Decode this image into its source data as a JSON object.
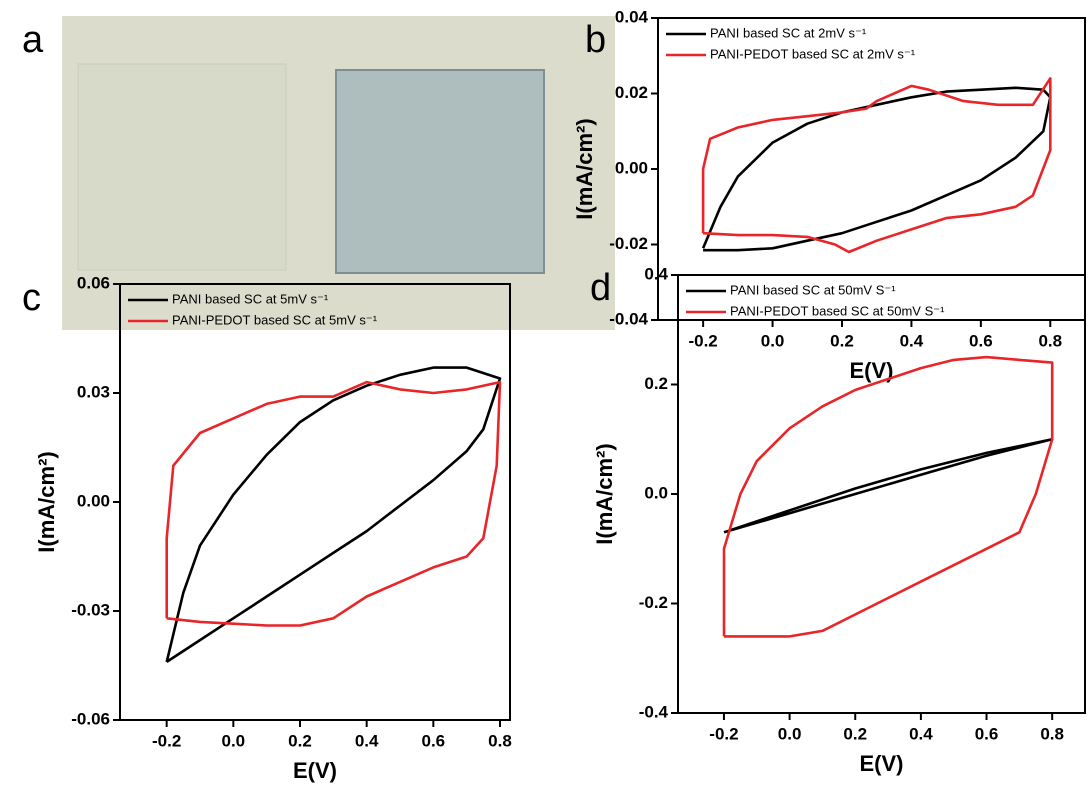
{
  "photo": {
    "panel_label": "a"
  },
  "chart_data": [
    {
      "type": "line",
      "panel_label": "b",
      "xlabel": "E(V)",
      "ylabel": "I(mA/cm²)",
      "xlim": [
        -0.33,
        0.9
      ],
      "xticks": [
        -0.2,
        {
          "value": 0,
          "label": "0.0"
        },
        0.2,
        0.4,
        0.6,
        0.8
      ],
      "ylim": [
        -0.04,
        0.04
      ],
      "yticks": [
        {
          "value": -0.04,
          "label": "-0.04"
        },
        {
          "value": -0.02,
          "label": "-0.02"
        },
        {
          "value": 0,
          "label": "0.00"
        },
        {
          "value": 0.02,
          "label": "0.02"
        },
        {
          "value": 0.04,
          "label": "0.04"
        }
      ],
      "series": [
        {
          "name": "PANI based SC at 2mV s⁻¹",
          "color": "#000000",
          "x": [
            -0.2,
            -0.15,
            -0.1,
            0,
            0.1,
            0.2,
            0.3,
            0.4,
            0.5,
            0.6,
            0.7,
            0.78,
            0.8,
            0.78,
            0.7,
            0.6,
            0.5,
            0.4,
            0.3,
            0.2,
            0.1,
            0,
            -0.1,
            -0.2
          ],
          "values": [
            -0.021,
            -0.01,
            -0.002,
            0.007,
            0.012,
            0.015,
            0.017,
            0.019,
            0.0205,
            0.021,
            0.0215,
            0.021,
            0.019,
            0.01,
            0.003,
            -0.003,
            -0.007,
            -0.011,
            -0.014,
            -0.017,
            -0.019,
            -0.021,
            -0.0215,
            -0.0215
          ]
        },
        {
          "name": "PANI-PEDOT based SC at 2mV s⁻¹",
          "color": "#e8262a",
          "x": [
            -0.2,
            -0.2,
            -0.18,
            -0.1,
            0,
            0.1,
            0.2,
            0.27,
            0.3,
            0.4,
            0.45,
            0.55,
            0.65,
            0.75,
            0.8,
            0.8,
            0.75,
            0.7,
            0.6,
            0.5,
            0.4,
            0.3,
            0.22,
            0.18,
            0.1,
            0,
            -0.1,
            -0.2
          ],
          "values": [
            -0.017,
            0,
            0.008,
            0.011,
            0.013,
            0.014,
            0.015,
            0.016,
            0.018,
            0.022,
            0.021,
            0.018,
            0.017,
            0.017,
            0.024,
            0.005,
            -0.007,
            -0.01,
            -0.012,
            -0.013,
            -0.016,
            -0.019,
            -0.022,
            -0.02,
            -0.018,
            -0.0175,
            -0.0175,
            -0.017
          ]
        }
      ]
    },
    {
      "type": "line",
      "panel_label": "c",
      "xlabel": "E(V)",
      "ylabel": "I(mA/cm²)",
      "xlim": [
        -0.34,
        0.83
      ],
      "xticks": [
        -0.2,
        {
          "value": 0,
          "label": "0.0"
        },
        0.2,
        0.4,
        0.6,
        0.8
      ],
      "ylim": [
        -0.06,
        0.06
      ],
      "yticks": [
        {
          "value": -0.06,
          "label": "-0.06"
        },
        {
          "value": -0.03,
          "label": "-0.03"
        },
        {
          "value": 0,
          "label": "0.00"
        },
        {
          "value": 0.03,
          "label": "0.03"
        },
        {
          "value": 0.06,
          "label": "0.06"
        }
      ],
      "series": [
        {
          "name": "PANI based SC at 5mV s⁻¹",
          "color": "#000000",
          "x": [
            -0.2,
            -0.15,
            -0.1,
            0,
            0.1,
            0.2,
            0.3,
            0.4,
            0.5,
            0.6,
            0.7,
            0.8,
            0.75,
            0.7,
            0.6,
            0.5,
            0.4,
            0.3,
            0.2,
            0.1,
            0,
            -0.1,
            -0.2
          ],
          "values": [
            -0.044,
            -0.025,
            -0.012,
            0.002,
            0.013,
            0.022,
            0.028,
            0.032,
            0.035,
            0.037,
            0.037,
            0.034,
            0.02,
            0.014,
            0.006,
            -0.001,
            -0.008,
            -0.014,
            -0.02,
            -0.026,
            -0.032,
            -0.038,
            -0.044
          ]
        },
        {
          "name": "PANI-PEDOT based SC at 5mV s⁻¹",
          "color": "#e8262a",
          "x": [
            -0.2,
            -0.2,
            -0.18,
            -0.1,
            0,
            0.1,
            0.2,
            0.3,
            0.4,
            0.5,
            0.6,
            0.7,
            0.8,
            0.79,
            0.75,
            0.7,
            0.6,
            0.5,
            0.4,
            0.3,
            0.2,
            0.1,
            0,
            -0.1,
            -0.2
          ],
          "values": [
            -0.032,
            -0.01,
            0.01,
            0.019,
            0.023,
            0.027,
            0.029,
            0.029,
            0.033,
            0.031,
            0.03,
            0.031,
            0.033,
            0.01,
            -0.01,
            -0.015,
            -0.018,
            -0.022,
            -0.026,
            -0.032,
            -0.034,
            -0.034,
            -0.0335,
            -0.033,
            -0.032
          ]
        }
      ]
    },
    {
      "type": "line",
      "panel_label": "d",
      "xlabel": "E(V)",
      "ylabel": "I(mA/cm²)",
      "xlim": [
        -0.34,
        0.9
      ],
      "xticks": [
        -0.2,
        {
          "value": 0,
          "label": "0.0"
        },
        0.2,
        0.4,
        0.6,
        0.8
      ],
      "ylim": [
        -0.4,
        0.4
      ],
      "yticks": [
        -0.4,
        -0.2,
        {
          "value": 0,
          "label": "0.0"
        },
        0.2,
        0.4
      ],
      "series": [
        {
          "name": "PANI based SC at 50mV S⁻¹",
          "color": "#000000",
          "x": [
            -0.2,
            0,
            0.2,
            0.4,
            0.6,
            0.8,
            0.6,
            0.4,
            0.2,
            0,
            -0.2
          ],
          "values": [
            -0.07,
            -0.03,
            0.01,
            0.045,
            0.075,
            0.1,
            0.07,
            0.035,
            0,
            -0.035,
            -0.07
          ]
        },
        {
          "name": "PANI-PEDOT based SC at 50mV S⁻¹",
          "color": "#e8262a",
          "x": [
            -0.2,
            -0.2,
            -0.15,
            -0.1,
            0,
            0.1,
            0.2,
            0.3,
            0.4,
            0.5,
            0.6,
            0.7,
            0.8,
            0.8,
            0.75,
            0.7,
            0.6,
            0.5,
            0.4,
            0.3,
            0.2,
            0.1,
            0,
            -0.1,
            -0.2
          ],
          "values": [
            -0.26,
            -0.1,
            0,
            0.06,
            0.12,
            0.16,
            0.19,
            0.21,
            0.23,
            0.245,
            0.25,
            0.245,
            0.24,
            0.1,
            0,
            -0.07,
            -0.1,
            -0.13,
            -0.16,
            -0.19,
            -0.22,
            -0.25,
            -0.26,
            -0.26,
            -0.26
          ]
        }
      ]
    }
  ]
}
